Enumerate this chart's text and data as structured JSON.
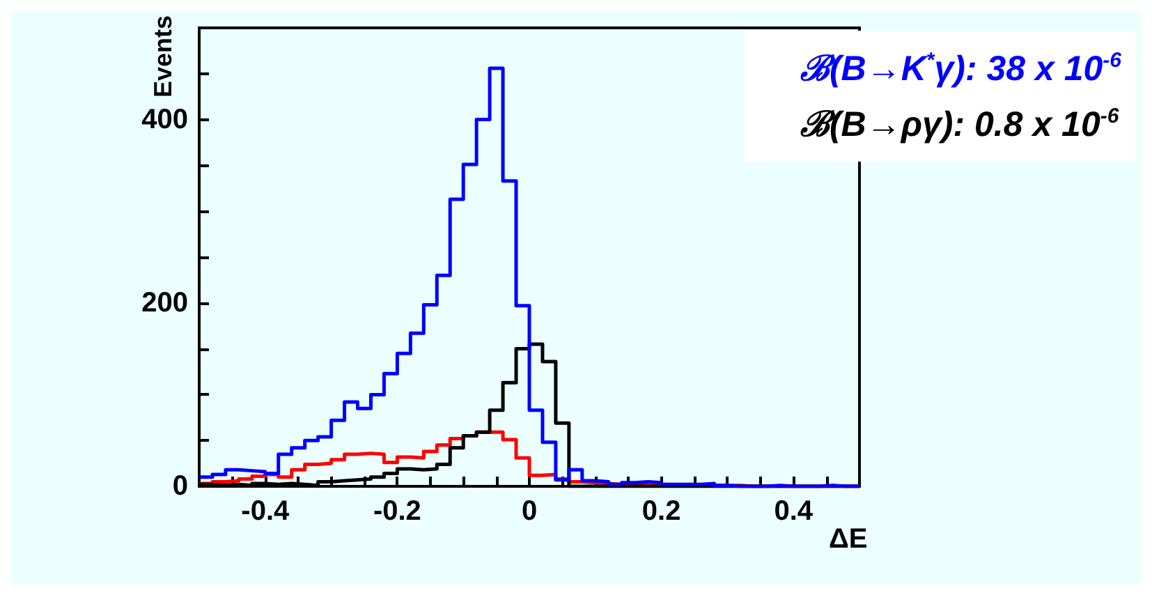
{
  "chart_data": {
    "type": "histogram",
    "xlabel": "ΔE",
    "ylabel": "Events",
    "bins": [
      -0.5,
      -0.48,
      -0.46,
      -0.44,
      -0.42,
      -0.4,
      -0.38,
      -0.36,
      -0.34,
      -0.32,
      -0.3,
      -0.28,
      -0.26,
      -0.24,
      -0.22,
      -0.2,
      -0.18,
      -0.16,
      -0.14,
      -0.12,
      -0.1,
      -0.08,
      -0.06,
      -0.04,
      -0.02,
      0,
      0.02,
      0.04,
      0.06,
      0.08,
      0.1,
      0.12,
      0.14,
      0.16,
      0.18,
      0.2,
      0.22,
      0.24,
      0.26,
      0.28,
      0.3,
      0.32,
      0.34,
      0.36,
      0.38,
      0.4,
      0.42,
      0.44,
      0.46,
      0.48,
      0.5
    ],
    "series": [
      {
        "name": "ℬ(B→K$^{*}$γ): 38 x 10$^{-6}$",
        "color": "#0000ff",
        "values": [
          10,
          13,
          18,
          17,
          16,
          14,
          35,
          42,
          50,
          54,
          72,
          92,
          85,
          100,
          123,
          145,
          167,
          198,
          230,
          313,
          351,
          400,
          456,
          333,
          197,
          83,
          48,
          7,
          18,
          6,
          5,
          2,
          4,
          5,
          4,
          2,
          2,
          2,
          3,
          1,
          0,
          0,
          0,
          1,
          0,
          0,
          0,
          1,
          0,
          0
        ]
      },
      {
        "name": "ℬ(B→ργ): 0.8 x 10$^{-6}$",
        "color": "#000000",
        "values": [
          2,
          1,
          2,
          1,
          3,
          2,
          3,
          2,
          1,
          5,
          6,
          7,
          8,
          10,
          14,
          19,
          18,
          19,
          24,
          42,
          55,
          59,
          83,
          113,
          150,
          155,
          136,
          69,
          0,
          0,
          0,
          0,
          0,
          0,
          0,
          0,
          0,
          0,
          0,
          0,
          0,
          0,
          0,
          0,
          0,
          0,
          0,
          0,
          0,
          0
        ]
      },
      {
        "color": "#ff0000",
        "values": [
          3,
          5,
          6,
          8,
          11,
          13,
          10,
          18,
          24,
          25,
          29,
          35,
          36,
          35,
          26,
          32,
          31,
          38,
          45,
          52,
          55,
          59,
          59,
          51,
          31,
          12,
          13,
          8,
          5,
          4,
          3,
          2,
          2,
          1,
          1,
          1,
          1,
          1,
          1,
          1,
          1,
          0,
          0,
          0,
          0,
          0,
          0,
          0,
          0,
          0
        ]
      }
    ],
    "xlim": [
      -0.5,
      0.5
    ],
    "ylim": [
      0,
      500
    ],
    "xticks": [
      {
        "value": -0.5,
        "label": null
      },
      {
        "value": -0.45,
        "label": null
      },
      -0.4,
      {
        "value": -0.35,
        "label": null
      },
      {
        "value": -0.3,
        "label": null
      },
      {
        "value": -0.25,
        "label": null
      },
      -0.2,
      {
        "value": -0.15,
        "label": null
      },
      {
        "value": -0.1,
        "label": null
      },
      {
        "value": -0.05,
        "label": null
      },
      0,
      {
        "value": 0.05,
        "label": null
      },
      {
        "value": 0.1,
        "label": null
      },
      {
        "value": 0.15,
        "label": null
      },
      0.2,
      {
        "value": 0.25,
        "label": null
      },
      {
        "value": 0.3,
        "label": null
      },
      {
        "value": 0.35,
        "label": null
      },
      0.4,
      {
        "value": 0.45,
        "label": null
      }
    ],
    "yticks": [
      0,
      {
        "value": 50,
        "label": null
      },
      {
        "value": 100,
        "label": null
      },
      {
        "value": 150,
        "label": null
      },
      200,
      {
        "value": 250,
        "label": null
      },
      {
        "value": 300,
        "label": null
      },
      {
        "value": 350,
        "label": null
      },
      400,
      {
        "value": 450,
        "label": null
      }
    ],
    "grid": false,
    "legend": "top right"
  }
}
